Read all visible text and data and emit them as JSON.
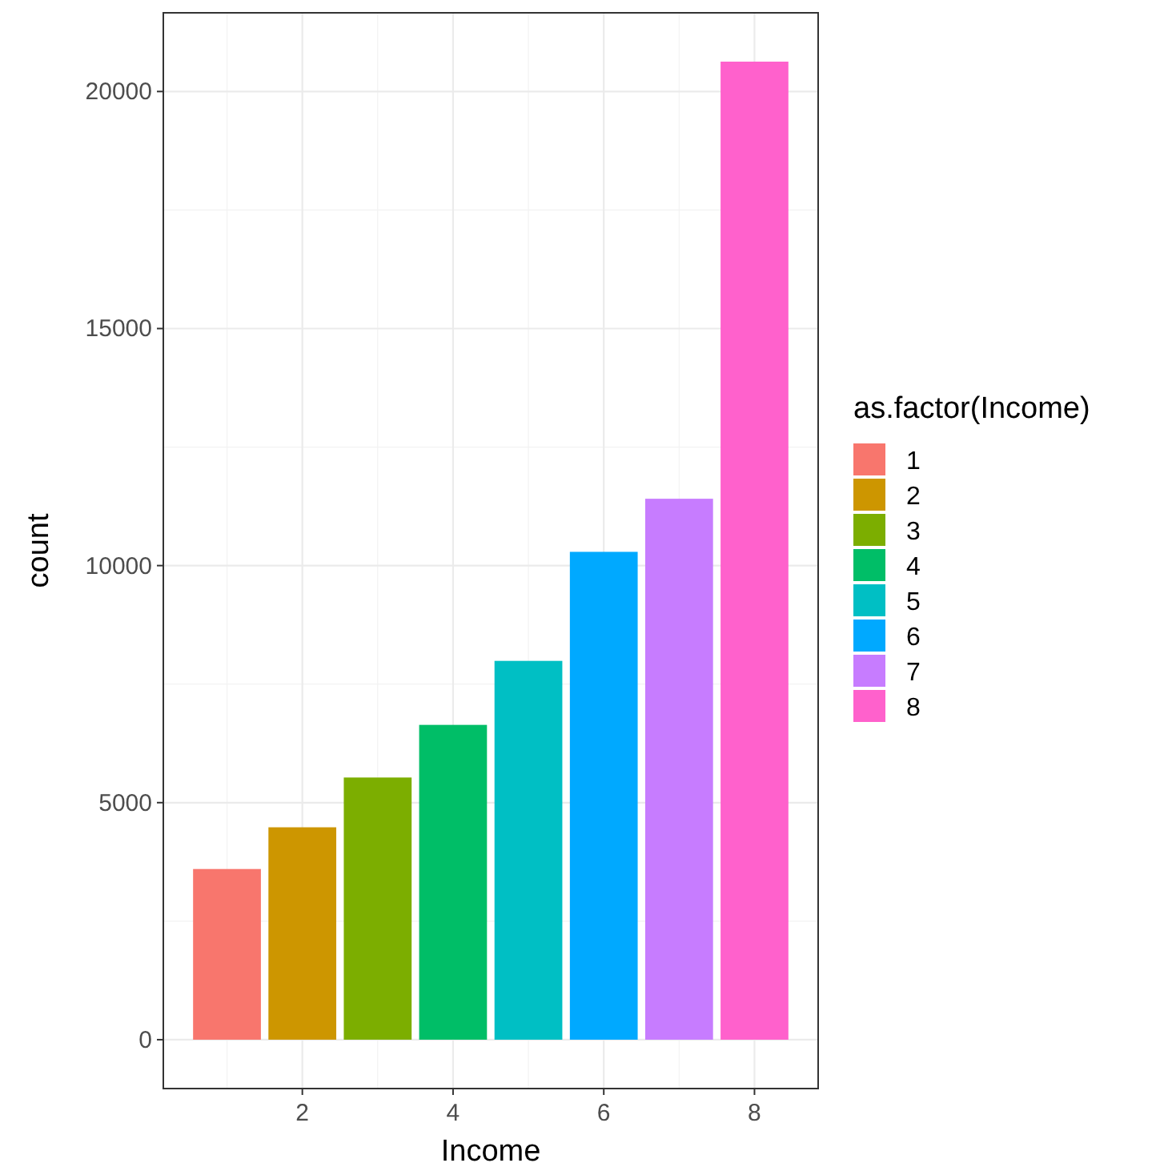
{
  "chart_data": {
    "type": "bar",
    "xlabel": "Income",
    "ylabel": "count",
    "legend_title": "as.factor(Income)",
    "xlim": [
      0.155,
      8.845
    ],
    "xticks": [
      2,
      4,
      6,
      8
    ],
    "ylim": [
      -1031,
      21660
    ],
    "yticks": [
      0,
      5000,
      10000,
      15000,
      20000
    ],
    "grid": true,
    "legend": "right",
    "series": [
      {
        "name": "1",
        "color": "#f8766d",
        "x": [
          1
        ],
        "values": [
          3600
        ]
      },
      {
        "name": "2",
        "color": "#cd9600",
        "x": [
          2
        ],
        "values": [
          4480
        ]
      },
      {
        "name": "3",
        "color": "#7cae00",
        "x": [
          3
        ],
        "values": [
          5530
        ]
      },
      {
        "name": "4",
        "color": "#00be67",
        "x": [
          4
        ],
        "values": [
          6640
        ]
      },
      {
        "name": "5",
        "color": "#00bfc4",
        "x": [
          5
        ],
        "values": [
          7990
        ]
      },
      {
        "name": "6",
        "color": "#00a9ff",
        "x": [
          6
        ],
        "values": [
          10290
        ]
      },
      {
        "name": "7",
        "color": "#c77cff",
        "x": [
          7
        ],
        "values": [
          11410
        ]
      },
      {
        "name": "8",
        "color": "#ff61cc",
        "x": [
          8
        ],
        "values": [
          20630
        ]
      }
    ]
  }
}
